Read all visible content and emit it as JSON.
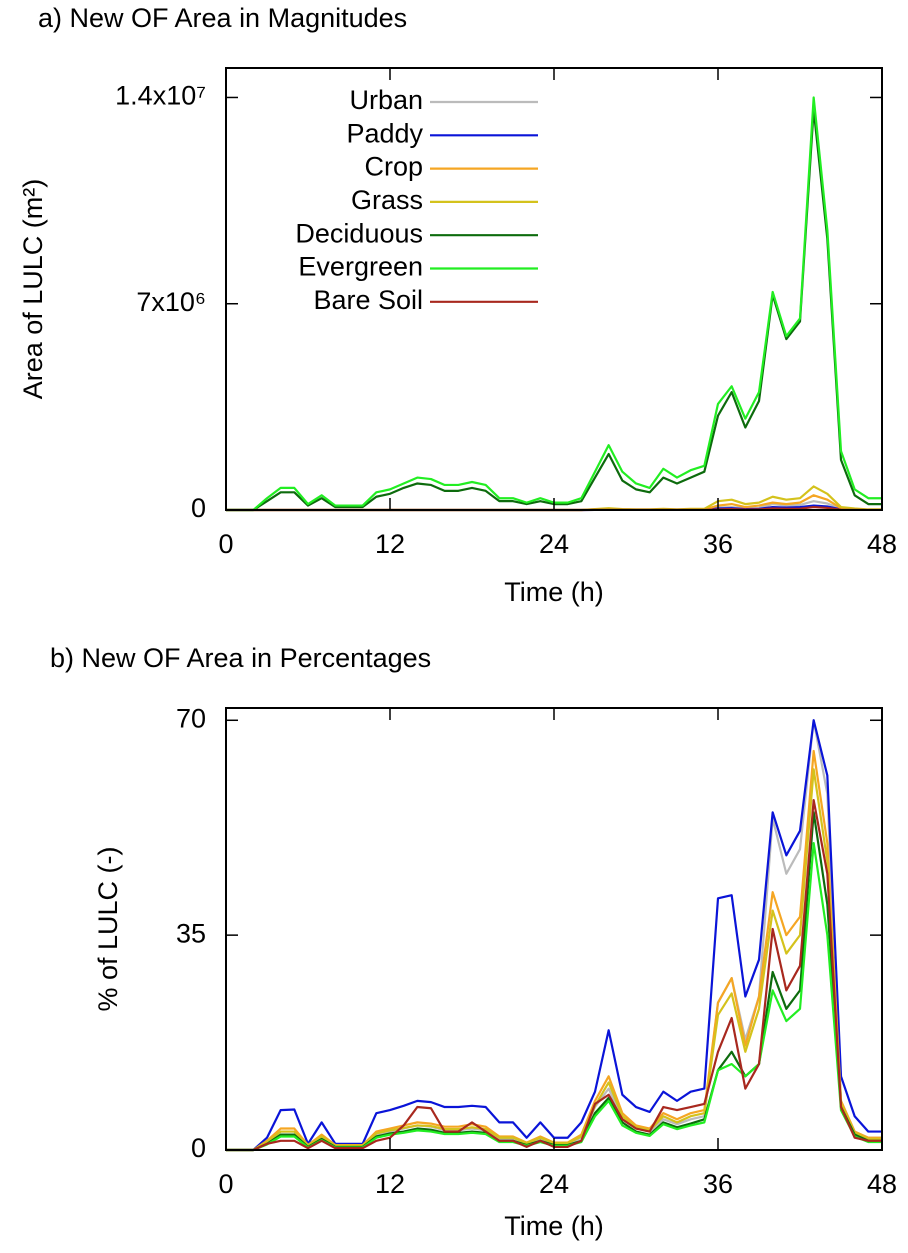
{
  "chart_data": [
    {
      "type": "line",
      "title": "a) New OF Area in Magnitudes",
      "xlabel": "Time (h)",
      "ylabel": "Area of LULC (m²)",
      "x": [
        0,
        1,
        2,
        3,
        4,
        5,
        6,
        7,
        8,
        9,
        10,
        11,
        12,
        13,
        14,
        15,
        16,
        17,
        18,
        19,
        20,
        21,
        22,
        23,
        24,
        25,
        26,
        27,
        28,
        29,
        30,
        31,
        32,
        33,
        34,
        35,
        36,
        37,
        38,
        39,
        40,
        41,
        42,
        43,
        44,
        45,
        46,
        47,
        48
      ],
      "xlim": [
        0,
        48
      ],
      "xticks": [
        0,
        12,
        24,
        36,
        48
      ],
      "ylim": [
        0,
        15000000
      ],
      "yticks": [
        0,
        {
          "value": 7000000,
          "label": "7x10⁶"
        },
        {
          "value": 14000000,
          "label": "1.4x10⁷"
        }
      ],
      "legend": "upper left",
      "series": [
        {
          "name": "Urban",
          "color": "#bbbbbb",
          "values": [
            0,
            0,
            0,
            0,
            0,
            0,
            0,
            0,
            0,
            0,
            0,
            0,
            0,
            0,
            0,
            0,
            0,
            0,
            0,
            0,
            0,
            0,
            0,
            0,
            0,
            0,
            0,
            10000,
            20000,
            10000,
            5000,
            5000,
            10000,
            5000,
            10000,
            10000,
            80000,
            100000,
            50000,
            70000,
            200000,
            150000,
            170000,
            300000,
            220000,
            40000,
            10000,
            5000,
            5000
          ]
        },
        {
          "name": "Paddy",
          "color": "#0a14d8",
          "values": [
            0,
            0,
            0,
            0,
            0,
            0,
            0,
            0,
            0,
            0,
            0,
            0,
            0,
            0,
            0,
            0,
            0,
            0,
            0,
            0,
            0,
            0,
            0,
            0,
            0,
            0,
            0,
            5000,
            10000,
            5000,
            3000,
            3000,
            5000,
            3000,
            5000,
            5000,
            50000,
            60000,
            30000,
            40000,
            100000,
            80000,
            100000,
            150000,
            120000,
            20000,
            5000,
            3000,
            3000
          ]
        },
        {
          "name": "Crop",
          "color": "#f5a623",
          "values": [
            0,
            0,
            0,
            0,
            0,
            0,
            0,
            0,
            0,
            0,
            0,
            0,
            0,
            0,
            0,
            0,
            0,
            0,
            0,
            0,
            0,
            0,
            0,
            0,
            0,
            0,
            0,
            20000,
            40000,
            20000,
            10000,
            10000,
            20000,
            10000,
            20000,
            20000,
            150000,
            200000,
            100000,
            150000,
            250000,
            200000,
            250000,
            500000,
            350000,
            60000,
            20000,
            10000,
            10000
          ]
        },
        {
          "name": "Grass",
          "color": "#d4c21c",
          "values": [
            0,
            0,
            0,
            0,
            0,
            0,
            0,
            0,
            0,
            0,
            0,
            0,
            0,
            0,
            0,
            0,
            0,
            0,
            0,
            0,
            0,
            0,
            0,
            0,
            0,
            0,
            0,
            30000,
            60000,
            30000,
            20000,
            20000,
            40000,
            20000,
            40000,
            40000,
            300000,
            350000,
            200000,
            250000,
            450000,
            350000,
            400000,
            800000,
            550000,
            100000,
            50000,
            20000,
            20000
          ]
        },
        {
          "name": "Deciduous",
          "color": "#0d6b0d",
          "values": [
            0,
            0,
            0,
            300000,
            600000,
            600000,
            150000,
            400000,
            100000,
            100000,
            100000,
            450000,
            550000,
            750000,
            900000,
            850000,
            650000,
            650000,
            750000,
            650000,
            300000,
            300000,
            200000,
            300000,
            200000,
            200000,
            300000,
            1100000,
            1900000,
            1000000,
            700000,
            600000,
            1100000,
            900000,
            1100000,
            1300000,
            3200000,
            4000000,
            2800000,
            3700000,
            7300000,
            5800000,
            6400000,
            13600000,
            9200000,
            1700000,
            500000,
            200000,
            200000
          ]
        },
        {
          "name": "Evergreen",
          "color": "#22ee22",
          "values": [
            0,
            0,
            0,
            400000,
            750000,
            750000,
            200000,
            500000,
            150000,
            150000,
            150000,
            600000,
            700000,
            900000,
            1100000,
            1050000,
            850000,
            850000,
            950000,
            850000,
            400000,
            400000,
            250000,
            400000,
            250000,
            250000,
            400000,
            1300000,
            2200000,
            1300000,
            900000,
            750000,
            1400000,
            1100000,
            1350000,
            1500000,
            3600000,
            4200000,
            3100000,
            4000000,
            7400000,
            5900000,
            6500000,
            14000000,
            9500000,
            2000000,
            700000,
            400000,
            400000
          ]
        },
        {
          "name": "Bare Soil",
          "color": "#a8281e",
          "values": [
            0,
            0,
            0,
            0,
            0,
            0,
            0,
            0,
            0,
            0,
            0,
            0,
            0,
            0,
            0,
            0,
            0,
            0,
            0,
            0,
            0,
            0,
            0,
            0,
            0,
            0,
            0,
            5000,
            5000,
            5000,
            3000,
            3000,
            5000,
            3000,
            5000,
            5000,
            20000,
            30000,
            15000,
            20000,
            50000,
            40000,
            45000,
            100000,
            70000,
            10000,
            3000,
            2000,
            2000
          ]
        }
      ]
    },
    {
      "type": "line",
      "title": "b) New OF Area in Percentages",
      "xlabel": "Time (h)",
      "ylabel": "% of LULC (-)",
      "x": [
        0,
        1,
        2,
        3,
        4,
        5,
        6,
        7,
        8,
        9,
        10,
        11,
        12,
        13,
        14,
        15,
        16,
        17,
        18,
        19,
        20,
        21,
        22,
        23,
        24,
        25,
        26,
        27,
        28,
        29,
        30,
        31,
        32,
        33,
        34,
        35,
        36,
        37,
        38,
        39,
        40,
        41,
        42,
        43,
        44,
        45,
        46,
        47,
        48
      ],
      "xlim": [
        0,
        48
      ],
      "xticks": [
        0,
        12,
        24,
        36,
        48
      ],
      "ylim": [
        0,
        72
      ],
      "yticks": [
        0,
        35,
        70
      ],
      "series": [
        {
          "color": "#bbbbbb",
          "values": [
            0,
            0,
            0,
            1.2,
            3,
            3,
            0.7,
            2,
            0.7,
            0.7,
            0.7,
            2.5,
            3,
            3.5,
            4,
            3.8,
            3.2,
            3.2,
            3.5,
            3.2,
            1.8,
            1.8,
            1,
            1.8,
            1,
            1,
            2,
            7,
            10,
            5,
            3.5,
            3,
            5,
            4.2,
            5,
            5.5,
            24,
            28,
            18,
            25,
            54,
            45,
            49,
            70,
            58,
            8,
            3,
            2,
            2
          ]
        },
        {
          "color": "#0a14d8",
          "values": [
            0,
            0,
            0,
            2,
            6.5,
            6.6,
            1,
            4.5,
            1,
            1,
            1,
            6,
            6.5,
            7.2,
            8,
            7.8,
            7,
            7,
            7.2,
            7,
            4.5,
            4.5,
            2,
            4.5,
            2,
            2,
            4.5,
            9.5,
            19.5,
            9,
            7,
            6.2,
            9.5,
            8,
            9.5,
            10,
            41,
            41.5,
            25,
            31,
            55,
            48,
            52,
            70,
            61,
            12,
            5.5,
            3,
            3
          ]
        },
        {
          "color": "#f5a623",
          "values": [
            0,
            0,
            0,
            1.5,
            3.5,
            3.5,
            0.8,
            2.5,
            0.8,
            0.8,
            0.8,
            3,
            3.5,
            4,
            4.5,
            4.3,
            3.8,
            3.8,
            4.2,
            3.8,
            2.2,
            2.2,
            1.2,
            2.2,
            1.2,
            1.2,
            2.5,
            8,
            12,
            6,
            4,
            3.5,
            6,
            5,
            6,
            6.5,
            24,
            28,
            17,
            25,
            42,
            35,
            38,
            65,
            50,
            8,
            3,
            2,
            2
          ]
        },
        {
          "color": "#d4c21c",
          "values": [
            0,
            0,
            0,
            1.3,
            3,
            3,
            0.7,
            2.2,
            0.7,
            0.7,
            0.7,
            2.7,
            3.2,
            3.6,
            4,
            3.9,
            3.4,
            3.4,
            3.7,
            3.4,
            2,
            2,
            1.1,
            2,
            1.1,
            1.1,
            2.2,
            7.2,
            11,
            5.5,
            3.7,
            3.2,
            5.5,
            4.5,
            5.5,
            6,
            22,
            25.5,
            16,
            23,
            39,
            32,
            35,
            62,
            47,
            7.5,
            2.8,
            1.8,
            1.8
          ]
        },
        {
          "color": "#0d6b0d",
          "values": [
            0,
            0,
            0,
            1,
            2.5,
            2.5,
            0.5,
            1.8,
            0.5,
            0.5,
            0.5,
            2.2,
            2.7,
            3,
            3.5,
            3.3,
            2.8,
            2.8,
            3,
            2.8,
            1.5,
            1.5,
            0.8,
            1.5,
            0.8,
            0.8,
            1.5,
            6,
            8.5,
            4.5,
            3,
            2.5,
            4.5,
            3.7,
            4.3,
            5,
            13,
            16,
            12,
            14,
            29,
            23,
            26,
            55,
            40,
            7,
            2.5,
            1.5,
            1.5
          ]
        },
        {
          "color": "#22ee22",
          "values": [
            0,
            0,
            0,
            0.9,
            2.2,
            2.2,
            0.4,
            1.6,
            0.4,
            0.4,
            0.4,
            2,
            2.5,
            2.8,
            3.2,
            3,
            2.6,
            2.6,
            2.8,
            2.6,
            1.3,
            1.3,
            0.7,
            1.3,
            0.7,
            0.7,
            1.3,
            5.5,
            8,
            4,
            2.8,
            2.3,
            4.2,
            3.4,
            4,
            4.5,
            13,
            14,
            12,
            14,
            26,
            21,
            23,
            50,
            35,
            6.5,
            2.2,
            1.3,
            1.3
          ]
        },
        {
          "color": "#a8281e",
          "values": [
            0,
            0,
            0,
            1,
            1.5,
            1.5,
            0.3,
            1.5,
            0.3,
            0.3,
            0.3,
            1.5,
            2,
            4,
            7,
            6.8,
            3,
            3,
            4.5,
            3,
            1.5,
            1.5,
            0.5,
            1.5,
            0.5,
            0.5,
            1.5,
            7.5,
            9,
            5,
            3.5,
            3,
            7,
            6.5,
            7,
            7.5,
            16,
            21.5,
            10,
            14,
            36,
            26,
            30,
            57,
            45,
            7,
            2,
            1.5,
            1.5
          ]
        }
      ]
    }
  ]
}
